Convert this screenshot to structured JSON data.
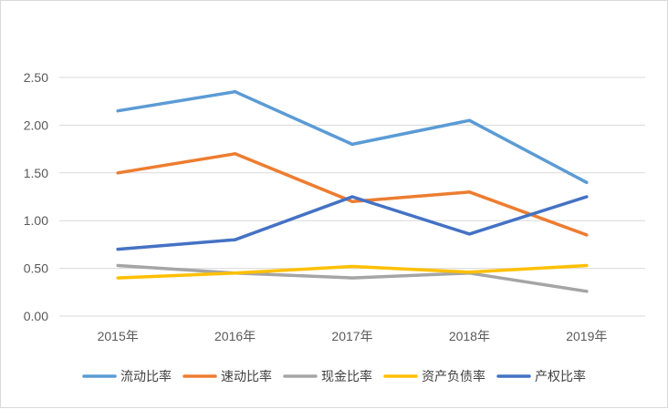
{
  "chart_data": {
    "type": "line",
    "title": "",
    "xlabel": "",
    "ylabel": "",
    "categories": [
      "2015年",
      "2016年",
      "2017年",
      "2018年",
      "2019年"
    ],
    "ylim": [
      0,
      2.5
    ],
    "yticks": [
      "0.00",
      "0.50",
      "1.00",
      "1.50",
      "2.00",
      "2.50"
    ],
    "ytick_values": [
      0,
      0.5,
      1.0,
      1.5,
      2.0,
      2.5
    ],
    "grid": true,
    "legend_position": "bottom",
    "series": [
      {
        "name": "流动比率",
        "color": "#5b9bd5",
        "values": [
          2.15,
          2.35,
          1.8,
          2.05,
          1.4
        ]
      },
      {
        "name": "速动比率",
        "color": "#ed7d31",
        "values": [
          1.5,
          1.7,
          1.2,
          1.3,
          0.85
        ]
      },
      {
        "name": "现金比率",
        "color": "#a5a5a5",
        "values": [
          0.53,
          0.45,
          0.4,
          0.45,
          0.26
        ]
      },
      {
        "name": "资产负债率",
        "color": "#ffc000",
        "values": [
          0.4,
          0.45,
          0.52,
          0.46,
          0.53
        ]
      },
      {
        "name": "产权比率",
        "color": "#4472c4",
        "values": [
          0.7,
          0.8,
          1.25,
          0.86,
          1.25
        ]
      }
    ]
  }
}
